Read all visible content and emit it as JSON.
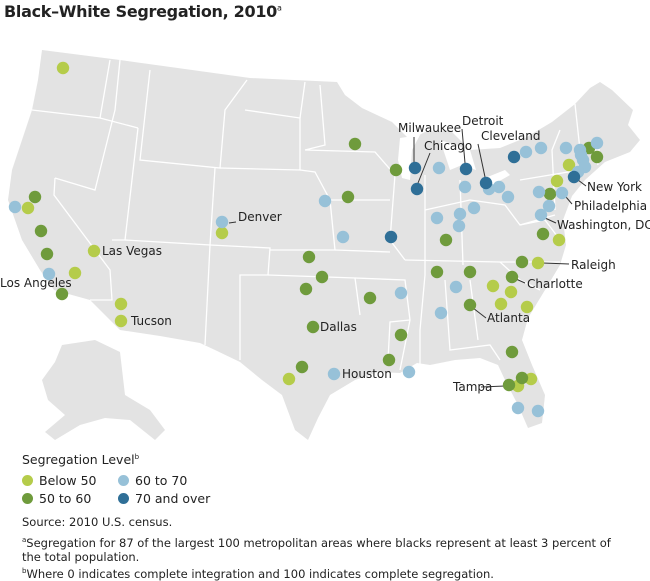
{
  "title": {
    "text": "Black–White Segregation, 2010",
    "note_mark": "a"
  },
  "colors": {
    "below_50": "#b5cc4a",
    "50_to_60": "#6f9b3c",
    "60_to_70": "#97c1d8",
    "70_and_over": "#2f6f97",
    "land": "#e3e3e3",
    "borders": "#ffffff"
  },
  "legend": {
    "title": "Segregation Level",
    "note_mark": "b",
    "items": [
      {
        "key": "below_50",
        "label": "Below 50"
      },
      {
        "key": "60_to_70",
        "label": "60 to 70"
      },
      {
        "key": "50_to_60",
        "label": "50 to 60"
      },
      {
        "key": "70_and_over",
        "label": "70 and over"
      }
    ]
  },
  "source": "Source: 2010 U.S. census.",
  "notes": [
    {
      "mark": "a",
      "text": "Segregation for 87 of the largest 100 metropolitan areas where blacks represent at least 3 percent of the total population."
    },
    {
      "mark": "b",
      "text": "Where 0 indicates complete integration and 100 indicates complete segregation."
    }
  ],
  "city_labels": [
    "Milwaukee",
    "Detroit",
    "Cleveland",
    "Chicago",
    "Denver",
    "Las Vegas",
    "Los Angeles",
    "Tucson",
    "Dallas",
    "Houston",
    "Atlanta",
    "Tampa",
    "New York",
    "Philadelphia",
    "Washington, DC",
    "Raleigh",
    "Charlotte"
  ],
  "marker_levels": {
    "below_50": 18,
    "50_to_60": 28,
    "60_to_70": 34,
    "70_and_over": 7
  }
}
